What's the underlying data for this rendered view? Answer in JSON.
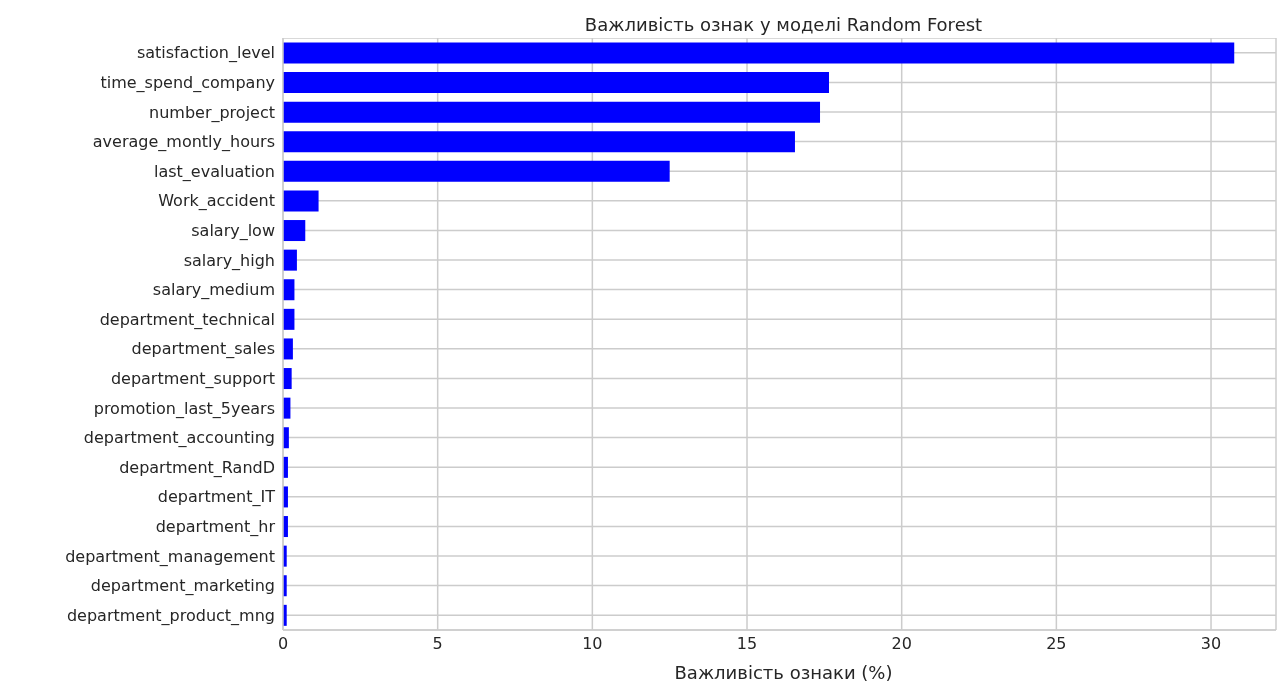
{
  "chart_data": {
    "type": "bar",
    "orientation": "horizontal",
    "title": "Важливість ознак у моделі Random Forest",
    "xlabel": "Важливість ознаки (%)",
    "categories": [
      "satisfaction_level",
      "time_spend_company",
      "number_project",
      "average_montly_hours",
      "last_evaluation",
      "Work_accident",
      "salary_low",
      "salary_high",
      "salary_medium",
      "department_technical",
      "department_sales",
      "department_support",
      "promotion_last_5years",
      "department_accounting",
      "department_RandD",
      "department_IT",
      "department_hr",
      "department_management",
      "department_marketing",
      "department_product_mng"
    ],
    "values": [
      30.75,
      17.65,
      17.36,
      16.55,
      12.5,
      1.15,
      0.72,
      0.45,
      0.37,
      0.37,
      0.32,
      0.28,
      0.24,
      0.19,
      0.16,
      0.16,
      0.16,
      0.12,
      0.12,
      0.12
    ],
    "color": "#0000ff",
    "xlim": [
      0,
      32.1
    ],
    "xticks": [
      0,
      5,
      10,
      15,
      20,
      25,
      30
    ],
    "grid": true
  }
}
